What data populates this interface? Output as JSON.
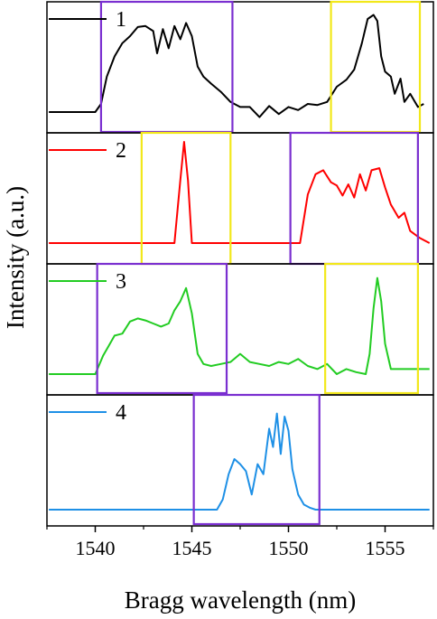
{
  "chart_data": {
    "type": "line",
    "xlabel": "Bragg wavelength (nm)",
    "ylabel": "Intensity (a.u.)",
    "xlim": [
      1537.5,
      1557.5
    ],
    "x_ticks": [
      "1540",
      "1545",
      "1550",
      "1555"
    ],
    "x_tick_values": [
      1540,
      1545,
      1550,
      1555
    ],
    "grid": false,
    "legend_placement": "top-left of each panel",
    "panels": [
      {
        "label": "1",
        "color": "#000000",
        "series": [
          {
            "name": "1",
            "x": [
              1537.6,
              1540.0,
              1540.3,
              1540.6,
              1541.0,
              1541.4,
              1541.8,
              1542.2,
              1542.6,
              1543.0,
              1543.2,
              1543.5,
              1543.8,
              1544.1,
              1544.4,
              1544.7,
              1545.0,
              1545.3,
              1545.6,
              1546.0,
              1546.5,
              1547.0,
              1547.5,
              1548.0,
              1548.5,
              1549.0,
              1549.5,
              1550.0,
              1550.5,
              1551.0,
              1551.5,
              1552.0,
              1552.5,
              1553.0,
              1553.4,
              1553.8,
              1554.1,
              1554.4,
              1554.6,
              1554.8,
              1555.0,
              1555.3,
              1555.5,
              1555.8,
              1556.0,
              1556.3,
              1556.7,
              1557.0
            ],
            "values": [
              0.0,
              0.0,
              0.08,
              0.35,
              0.55,
              0.68,
              0.75,
              0.84,
              0.85,
              0.8,
              0.58,
              0.82,
              0.63,
              0.85,
              0.72,
              0.88,
              0.75,
              0.45,
              0.35,
              0.28,
              0.2,
              0.1,
              0.05,
              0.05,
              -0.05,
              0.06,
              -0.02,
              0.05,
              0.02,
              0.08,
              0.07,
              0.1,
              0.25,
              0.32,
              0.42,
              0.68,
              0.92,
              0.96,
              0.9,
              0.55,
              0.4,
              0.35,
              0.18,
              0.33,
              0.1,
              0.18,
              0.05,
              0.08
            ]
          }
        ]
      },
      {
        "label": "2",
        "color": "#ff0000",
        "series": [
          {
            "name": "2",
            "x": [
              1537.6,
              1544.1,
              1544.4,
              1544.6,
              1544.8,
              1545.0,
              1545.2,
              1550.6,
              1551.0,
              1551.4,
              1551.8,
              1552.2,
              1552.5,
              1552.8,
              1553.1,
              1553.4,
              1553.7,
              1554.0,
              1554.3,
              1554.7,
              1555.0,
              1555.3,
              1555.7,
              1556.0,
              1556.3,
              1556.8,
              1557.3
            ],
            "values": [
              0.0,
              0.0,
              0.62,
              1.0,
              0.62,
              0.0,
              0.0,
              0.0,
              0.48,
              0.68,
              0.72,
              0.6,
              0.57,
              0.47,
              0.58,
              0.45,
              0.68,
              0.52,
              0.72,
              0.74,
              0.55,
              0.38,
              0.25,
              0.3,
              0.12,
              0.05,
              0.0
            ]
          }
        ]
      },
      {
        "label": "3",
        "color": "#22cc22",
        "series": [
          {
            "name": "3",
            "x": [
              1537.6,
              1540.0,
              1540.4,
              1540.7,
              1541.0,
              1541.4,
              1541.8,
              1542.2,
              1542.6,
              1543.0,
              1543.4,
              1543.8,
              1544.1,
              1544.4,
              1544.7,
              1545.0,
              1545.3,
              1545.6,
              1546.0,
              1546.5,
              1547.0,
              1547.5,
              1548.0,
              1548.5,
              1549.0,
              1549.5,
              1550.0,
              1550.5,
              1551.0,
              1551.5,
              1552.0,
              1552.5,
              1553.0,
              1553.5,
              1554.0,
              1554.2,
              1554.4,
              1554.6,
              1554.8,
              1555.0,
              1555.3,
              1555.6,
              1556.0,
              1557.3
            ],
            "values": [
              0.0,
              0.0,
              0.18,
              0.28,
              0.38,
              0.4,
              0.52,
              0.55,
              0.53,
              0.5,
              0.47,
              0.5,
              0.63,
              0.72,
              0.85,
              0.6,
              0.2,
              0.1,
              0.08,
              0.1,
              0.12,
              0.2,
              0.12,
              0.1,
              0.08,
              0.12,
              0.1,
              0.15,
              0.08,
              0.05,
              0.1,
              0.0,
              0.05,
              0.02,
              0.0,
              0.2,
              0.65,
              0.95,
              0.72,
              0.3,
              0.05,
              0.05,
              0.05,
              0.05
            ]
          }
        ]
      },
      {
        "label": "4",
        "color": "#1e90e6",
        "series": [
          {
            "name": "4",
            "x": [
              1537.6,
              1546.3,
              1546.6,
              1546.9,
              1547.2,
              1547.5,
              1547.8,
              1548.1,
              1548.4,
              1548.7,
              1549.0,
              1549.2,
              1549.4,
              1549.6,
              1549.8,
              1550.0,
              1550.2,
              1550.5,
              1550.8,
              1551.1,
              1551.4,
              1557.3
            ],
            "values": [
              0.0,
              0.0,
              0.1,
              0.35,
              0.5,
              0.45,
              0.38,
              0.15,
              0.45,
              0.35,
              0.8,
              0.62,
              0.95,
              0.55,
              0.92,
              0.78,
              0.4,
              0.15,
              0.05,
              0.02,
              0.0,
              0.0
            ]
          }
        ]
      }
    ]
  },
  "colors": {
    "purple_box": "#7a2fd0",
    "yellow_box": "#f2e81a"
  }
}
